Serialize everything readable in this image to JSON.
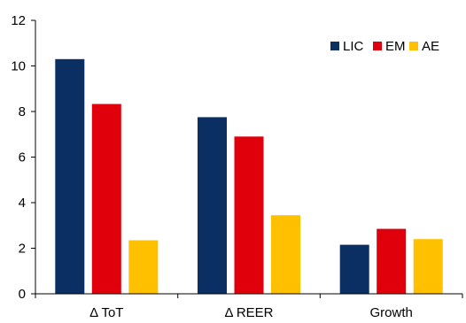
{
  "chart_data": {
    "type": "bar",
    "categories": [
      "Δ ToT",
      "Δ REER",
      "Growth"
    ],
    "series": [
      {
        "name": "LIC",
        "color": "#0b2f63",
        "values": [
          10.3,
          7.75,
          2.15
        ]
      },
      {
        "name": "EM",
        "color": "#e0000b",
        "values": [
          8.33,
          6.9,
          2.85
        ]
      },
      {
        "name": "AE",
        "color": "#ffc000",
        "values": [
          2.35,
          3.45,
          2.4
        ]
      }
    ],
    "ylim": [
      0,
      12
    ],
    "yticks": [
      0,
      2,
      4,
      6,
      8,
      10,
      12
    ],
    "grid": false,
    "legend": "top-right"
  }
}
